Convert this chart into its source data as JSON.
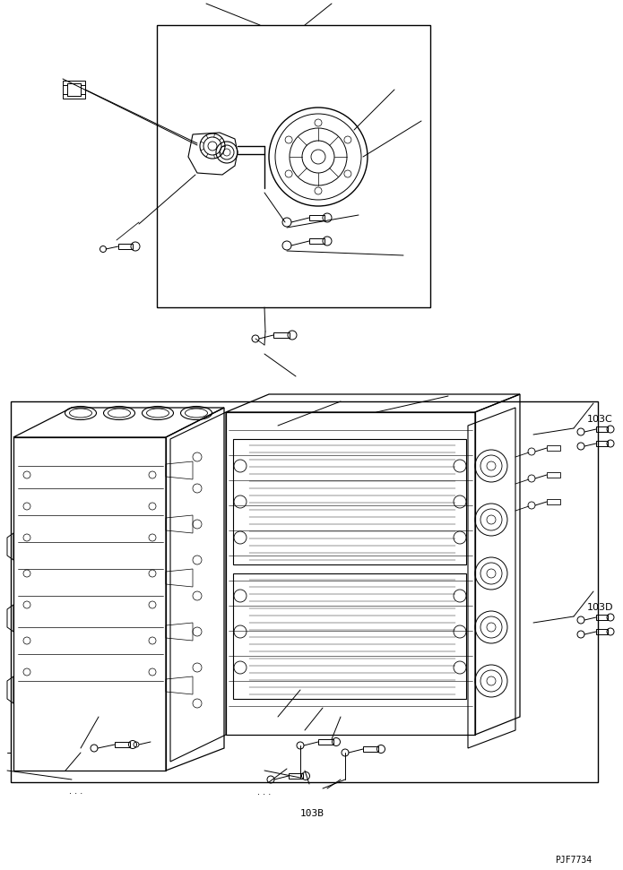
{
  "bg_color": "#ffffff",
  "line_color": "#000000",
  "fig_width": 6.95,
  "fig_height": 9.71,
  "dpi": 100,
  "label_103B": "103B",
  "label_103C": "103C",
  "label_103D": "103D",
  "watermark": "PJF7734"
}
